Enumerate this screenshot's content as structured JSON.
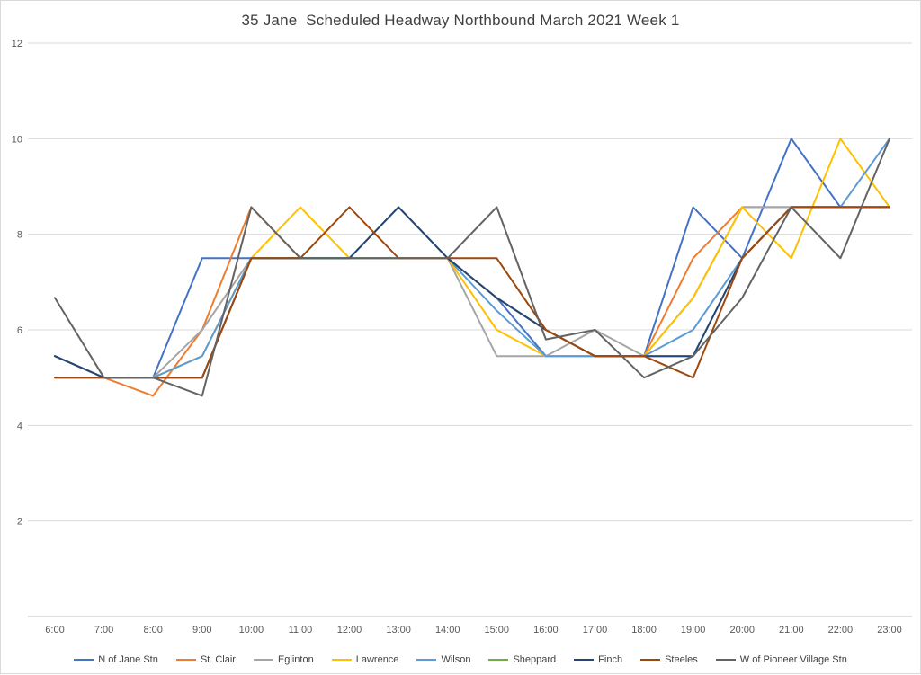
{
  "chart_data": {
    "type": "line",
    "title": "35 Jane  Scheduled Headway Northbound March 2021 Week 1",
    "xlabel": "",
    "ylabel": "",
    "ylim": [
      0,
      12
    ],
    "y_ticks": [
      2,
      4,
      6,
      8,
      10,
      12
    ],
    "grid": "horizontal",
    "legend_position": "bottom",
    "categories": [
      "6:00",
      "7:00",
      "8:00",
      "9:00",
      "10:00",
      "11:00",
      "12:00",
      "13:00",
      "14:00",
      "15:00",
      "16:00",
      "17:00",
      "18:00",
      "19:00",
      "20:00",
      "21:00",
      "22:00",
      "23:00"
    ],
    "series": [
      {
        "name": "N of Jane Stn",
        "color": "#4472C4",
        "values": [
          5.45,
          5,
          5,
          7.5,
          7.5,
          7.5,
          7.5,
          7.5,
          7.5,
          6.67,
          5.45,
          5.45,
          5.45,
          8.57,
          7.5,
          10,
          8.57,
          8.57
        ]
      },
      {
        "name": "St. Clair",
        "color": "#ED7D31",
        "values": [
          5,
          5,
          4.62,
          6,
          8.57,
          7.5,
          7.5,
          7.5,
          7.5,
          6.67,
          6,
          5.45,
          5.45,
          7.5,
          8.57,
          8.57,
          8.57,
          8.57
        ]
      },
      {
        "name": "Eglinton",
        "color": "#A5A5A5",
        "values": [
          5,
          5,
          5,
          6,
          7.5,
          7.5,
          7.5,
          7.5,
          7.5,
          5.45,
          5.45,
          6,
          5.45,
          6.67,
          8.57,
          8.57,
          8.57,
          8.57
        ]
      },
      {
        "name": "Lawrence",
        "color": "#FFC000",
        "values": [
          5,
          5,
          5,
          5.45,
          7.5,
          8.57,
          7.5,
          7.5,
          7.5,
          6,
          5.45,
          5.45,
          5.45,
          6.67,
          8.57,
          7.5,
          10,
          8.57
        ]
      },
      {
        "name": "Wilson",
        "color": "#5B9BD5",
        "values": [
          5,
          5,
          5,
          5.45,
          7.5,
          7.5,
          7.5,
          7.5,
          7.5,
          6.4,
          5.45,
          5.45,
          5.45,
          6,
          7.5,
          8.57,
          8.57,
          10
        ]
      },
      {
        "name": "Sheppard",
        "color": "#70AD47",
        "values": [
          5.45,
          5,
          5,
          5,
          7.5,
          7.5,
          7.5,
          8.57,
          7.5,
          6.67,
          6,
          5.45,
          5.45,
          5.45,
          7.5,
          8.57,
          8.57,
          8.57
        ]
      },
      {
        "name": "Finch",
        "color": "#264478",
        "values": [
          5.45,
          5,
          5,
          5,
          7.5,
          7.5,
          7.5,
          8.57,
          7.5,
          6.67,
          6,
          5.45,
          5.45,
          5.45,
          7.5,
          8.57,
          8.57,
          8.57
        ]
      },
      {
        "name": "Steeles",
        "color": "#9E480E",
        "values": [
          5,
          5,
          5,
          5,
          7.5,
          7.5,
          8.57,
          7.5,
          7.5,
          7.5,
          6,
          5.45,
          5.45,
          5,
          7.5,
          8.57,
          8.57,
          8.57
        ]
      },
      {
        "name": "W of Pioneer Village Stn",
        "color": "#636363",
        "values": [
          6.67,
          5,
          5,
          4.62,
          8.57,
          7.5,
          7.5,
          7.5,
          7.5,
          8.57,
          5.8,
          6,
          5,
          5.45,
          6.67,
          8.57,
          7.5,
          10
        ]
      }
    ],
    "colors": {
      "gridline": "#D9D9D9",
      "axis_line": "#BFBFBF",
      "tick_text": "#595959",
      "title_text": "#404040"
    }
  }
}
